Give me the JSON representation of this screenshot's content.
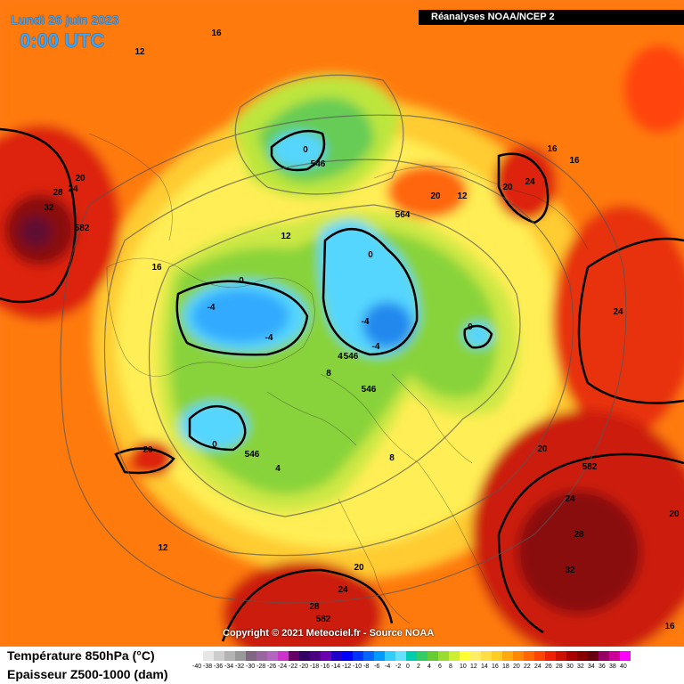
{
  "header": {
    "date": "Lundi 26 juin 2023",
    "time": "0:00 UTC",
    "source": "Réanalyses NOAA/NCEP 2"
  },
  "footer": {
    "copyright": "Copyright © 2021 Meteociel.fr - Source NOAA"
  },
  "legend": {
    "line1": "Température 850hPa (°C)",
    "line2": "Epaisseur Z500-1000 (dam)",
    "ticks": [
      "-40",
      "-38",
      "-36",
      "-34",
      "-32",
      "-30",
      "-28",
      "-26",
      "-24",
      "-22",
      "-20",
      "-18",
      "-16",
      "-14",
      "-12",
      "-10",
      "-8",
      "-6",
      "-4",
      "-2",
      "0",
      "2",
      "4",
      "6",
      "8",
      "10",
      "12",
      "14",
      "16",
      "18",
      "20",
      "22",
      "24",
      "26",
      "28",
      "30",
      "32",
      "34",
      "36",
      "38",
      "40"
    ],
    "colors": [
      "#ffffff",
      "#e6e6e6",
      "#cccccc",
      "#b3b3b3",
      "#999999",
      "#806680",
      "#9966a0",
      "#b366c0",
      "#cc33cc",
      "#660066",
      "#330066",
      "#4b0082",
      "#6a00b0",
      "#2200cc",
      "#0000ff",
      "#0033ff",
      "#0066ff",
      "#0099ff",
      "#33ccff",
      "#66e0ff",
      "#00ccb0",
      "#33cc66",
      "#66cc33",
      "#99dd33",
      "#ccee33",
      "#ffff33",
      "#ffee66",
      "#ffdd44",
      "#ffcc22",
      "#ffaa11",
      "#ff8800",
      "#ff6600",
      "#ff4400",
      "#ee2200",
      "#cc1100",
      "#aa0000",
      "#880000",
      "#660011",
      "#990066",
      "#cc0099",
      "#ff00ff"
    ]
  },
  "map_labels": {
    "isotherm_values": [
      "16",
      "12",
      "20",
      "28",
      "24",
      "32",
      "582",
      "16",
      "12",
      "16",
      "20",
      "24",
      "16",
      "564",
      "12",
      "20",
      "0",
      "546",
      "0",
      "-4",
      "-4",
      "0",
      "-4",
      "0",
      "24",
      "4",
      "546",
      "8",
      "546",
      "0",
      "20",
      "546",
      "4",
      "-4",
      "8",
      "20",
      "582",
      "24",
      "20",
      "28",
      "32",
      "12",
      "20",
      "24",
      "28",
      "582",
      "16"
    ]
  }
}
